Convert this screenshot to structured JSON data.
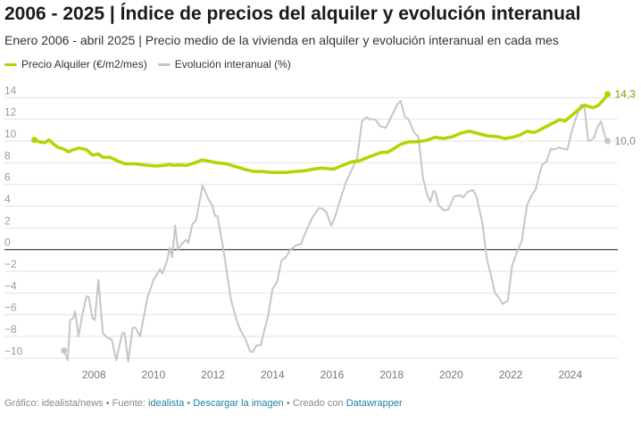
{
  "header": {
    "title": "2006 - 2025 | Índice de precios del alquiler y evolución interanual",
    "subtitle": "Enero 2006 - abril 2025 | Precio medio de la vivienda en alquiler y evolución interanual en cada mes"
  },
  "footer": {
    "prefix": "Gráfico: idealista/news • Fuente: ",
    "source_link": "idealista",
    "sep1": " • ",
    "download_link": "Descargar la imagen",
    "sep2": " • Creado con ",
    "tool_link": "Datawrapper"
  },
  "colors": {
    "rent": "#b5d300",
    "yoy": "#c6c6c6",
    "rent_label": "#8a9800",
    "yoy_label": "#888888",
    "zero": "#555555",
    "grid": "#e2e2e2",
    "tick": "#9a9a9a"
  },
  "chart_data": {
    "type": "line",
    "title": "2006 - 2025 | Índice de precios del alquiler y evolución interanual",
    "xlabel": "",
    "ylabel": "",
    "xlim": [
      2006,
      2025.25
    ],
    "ylim": [
      -10.5,
      14.5
    ],
    "y_ticks": [
      14,
      12,
      10,
      8,
      6,
      4,
      2,
      0,
      -2,
      -4,
      -6,
      -8,
      -10
    ],
    "y_tick_labels": [
      "14",
      "12",
      "10",
      "8",
      "6",
      "4",
      "2",
      "0",
      "−2",
      "−4",
      "−6",
      "−8",
      "−10"
    ],
    "x_ticks": [
      2008,
      2010,
      2012,
      2014,
      2016,
      2018,
      2020,
      2022,
      2024
    ],
    "x_tick_labels": [
      "2008",
      "2010",
      "2012",
      "2014",
      "2016",
      "2018",
      "2020",
      "2022",
      "2024"
    ],
    "grid": true,
    "legend_position": "top-left",
    "series": [
      {
        "name": "Precio Alquiler (€/m2/mes)",
        "end_label": "14,3",
        "points": [
          [
            2006.0,
            10.1
          ],
          [
            2006.2,
            9.9
          ],
          [
            2006.35,
            9.85
          ],
          [
            2006.5,
            10.1
          ],
          [
            2006.65,
            9.7
          ],
          [
            2006.8,
            9.4
          ],
          [
            2006.95,
            9.3
          ],
          [
            2007.15,
            9.0
          ],
          [
            2007.3,
            9.2
          ],
          [
            2007.5,
            9.35
          ],
          [
            2007.75,
            9.2
          ],
          [
            2007.95,
            8.7
          ],
          [
            2008.15,
            8.8
          ],
          [
            2008.3,
            8.5
          ],
          [
            2008.55,
            8.5
          ],
          [
            2008.8,
            8.15
          ],
          [
            2009.05,
            7.9
          ],
          [
            2009.4,
            7.9
          ],
          [
            2009.65,
            7.8
          ],
          [
            2010.05,
            7.7
          ],
          [
            2010.35,
            7.75
          ],
          [
            2010.55,
            7.85
          ],
          [
            2010.65,
            7.75
          ],
          [
            2010.85,
            7.8
          ],
          [
            2011.1,
            7.75
          ],
          [
            2011.4,
            8.0
          ],
          [
            2011.63,
            8.25
          ],
          [
            2011.85,
            8.15
          ],
          [
            2012.1,
            8.0
          ],
          [
            2012.45,
            7.9
          ],
          [
            2012.75,
            7.65
          ],
          [
            2013.05,
            7.4
          ],
          [
            2013.35,
            7.2
          ],
          [
            2013.65,
            7.2
          ],
          [
            2013.95,
            7.1
          ],
          [
            2014.45,
            7.1
          ],
          [
            2014.75,
            7.2
          ],
          [
            2015.05,
            7.25
          ],
          [
            2015.35,
            7.4
          ],
          [
            2015.65,
            7.5
          ],
          [
            2016.05,
            7.4
          ],
          [
            2016.25,
            7.65
          ],
          [
            2016.65,
            8.07
          ],
          [
            2016.95,
            8.2
          ],
          [
            2017.3,
            8.6
          ],
          [
            2017.65,
            8.95
          ],
          [
            2017.85,
            8.95
          ],
          [
            2018.05,
            9.25
          ],
          [
            2018.3,
            9.7
          ],
          [
            2018.6,
            9.93
          ],
          [
            2018.85,
            9.93
          ],
          [
            2019.15,
            10.04
          ],
          [
            2019.45,
            10.34
          ],
          [
            2019.75,
            10.23
          ],
          [
            2020.05,
            10.4
          ],
          [
            2020.35,
            10.75
          ],
          [
            2020.6,
            10.9
          ],
          [
            2020.9,
            10.7
          ],
          [
            2021.2,
            10.48
          ],
          [
            2021.55,
            10.4
          ],
          [
            2021.8,
            10.23
          ],
          [
            2022.05,
            10.34
          ],
          [
            2022.3,
            10.53
          ],
          [
            2022.55,
            10.9
          ],
          [
            2022.8,
            10.78
          ],
          [
            2023.1,
            11.2
          ],
          [
            2023.35,
            11.55
          ],
          [
            2023.65,
            11.96
          ],
          [
            2023.83,
            11.85
          ],
          [
            2024.15,
            12.6
          ],
          [
            2024.47,
            13.3
          ],
          [
            2024.77,
            13.06
          ],
          [
            2024.95,
            13.3
          ],
          [
            2025.15,
            13.9
          ],
          [
            2025.25,
            14.3
          ]
        ]
      },
      {
        "name": "Evolución interanual (%)",
        "end_label": "10,0",
        "points": [
          [
            2007.0,
            -9.3
          ],
          [
            2007.12,
            -10.2
          ],
          [
            2007.2,
            -6.5
          ],
          [
            2007.3,
            -6.3
          ],
          [
            2007.37,
            -5.7
          ],
          [
            2007.48,
            -8.0
          ],
          [
            2007.6,
            -6.1
          ],
          [
            2007.75,
            -4.3
          ],
          [
            2007.83,
            -4.4
          ],
          [
            2007.95,
            -6.3
          ],
          [
            2008.03,
            -6.5
          ],
          [
            2008.15,
            -2.8
          ],
          [
            2008.3,
            -7.7
          ],
          [
            2008.45,
            -8.1
          ],
          [
            2008.6,
            -8.3
          ],
          [
            2008.75,
            -10.2
          ],
          [
            2008.95,
            -7.7
          ],
          [
            2009.03,
            -7.7
          ],
          [
            2009.15,
            -10.3
          ],
          [
            2009.3,
            -7.2
          ],
          [
            2009.4,
            -7.2
          ],
          [
            2009.55,
            -8.0
          ],
          [
            2009.8,
            -4.4
          ],
          [
            2010.0,
            -2.8
          ],
          [
            2010.22,
            -1.8
          ],
          [
            2010.3,
            -2.2
          ],
          [
            2010.45,
            -1.1
          ],
          [
            2010.55,
            0.2
          ],
          [
            2010.63,
            -0.7
          ],
          [
            2010.73,
            2.2
          ],
          [
            2010.82,
            0.0
          ],
          [
            2010.95,
            0.5
          ],
          [
            2011.1,
            0.9
          ],
          [
            2011.17,
            0.6
          ],
          [
            2011.3,
            2.3
          ],
          [
            2011.43,
            2.7
          ],
          [
            2011.65,
            5.9
          ],
          [
            2011.85,
            4.6
          ],
          [
            2011.97,
            4.1
          ],
          [
            2012.07,
            3.1
          ],
          [
            2012.15,
            3.1
          ],
          [
            2012.35,
            0.0
          ],
          [
            2012.6,
            -4.6
          ],
          [
            2012.75,
            -6.1
          ],
          [
            2012.9,
            -7.3
          ],
          [
            2013.1,
            -8.3
          ],
          [
            2013.25,
            -9.4
          ],
          [
            2013.33,
            -9.4
          ],
          [
            2013.47,
            -8.8
          ],
          [
            2013.6,
            -8.8
          ],
          [
            2013.85,
            -6.1
          ],
          [
            2014.0,
            -3.6
          ],
          [
            2014.15,
            -3.0
          ],
          [
            2014.3,
            -1.0
          ],
          [
            2014.45,
            -0.7
          ],
          [
            2014.6,
            0.0
          ],
          [
            2014.8,
            0.4
          ],
          [
            2014.95,
            0.5
          ],
          [
            2015.15,
            1.9
          ],
          [
            2015.35,
            3.0
          ],
          [
            2015.55,
            3.8
          ],
          [
            2015.65,
            3.8
          ],
          [
            2015.8,
            3.5
          ],
          [
            2015.97,
            2.2
          ],
          [
            2016.1,
            3.0
          ],
          [
            2016.25,
            4.4
          ],
          [
            2016.45,
            6.1
          ],
          [
            2016.6,
            7.0
          ],
          [
            2016.85,
            8.5
          ],
          [
            2017.0,
            11.8
          ],
          [
            2017.15,
            12.2
          ],
          [
            2017.25,
            12.0
          ],
          [
            2017.45,
            12.0
          ],
          [
            2017.6,
            11.4
          ],
          [
            2017.8,
            11.2
          ],
          [
            2018.0,
            12.3
          ],
          [
            2018.2,
            13.4
          ],
          [
            2018.3,
            13.7
          ],
          [
            2018.45,
            12.2
          ],
          [
            2018.57,
            12.0
          ],
          [
            2018.75,
            10.8
          ],
          [
            2018.9,
            10.4
          ],
          [
            2019.05,
            6.6
          ],
          [
            2019.2,
            5.0
          ],
          [
            2019.3,
            4.4
          ],
          [
            2019.4,
            5.4
          ],
          [
            2019.47,
            5.3
          ],
          [
            2019.57,
            4.1
          ],
          [
            2019.75,
            3.6
          ],
          [
            2019.9,
            3.7
          ],
          [
            2020.1,
            4.9
          ],
          [
            2020.3,
            5.0
          ],
          [
            2020.4,
            4.8
          ],
          [
            2020.55,
            5.3
          ],
          [
            2020.73,
            5.5
          ],
          [
            2020.85,
            4.9
          ],
          [
            2021.05,
            2.4
          ],
          [
            2021.2,
            -0.9
          ],
          [
            2021.35,
            -2.5
          ],
          [
            2021.47,
            -4.0
          ],
          [
            2021.6,
            -4.4
          ],
          [
            2021.73,
            -5.0
          ],
          [
            2021.9,
            -4.7
          ],
          [
            2022.05,
            -1.4
          ],
          [
            2022.2,
            -0.3
          ],
          [
            2022.37,
            0.8
          ],
          [
            2022.55,
            4.1
          ],
          [
            2022.7,
            5.0
          ],
          [
            2022.83,
            5.5
          ],
          [
            2023.05,
            7.8
          ],
          [
            2023.2,
            8.1
          ],
          [
            2023.35,
            9.3
          ],
          [
            2023.45,
            9.2
          ],
          [
            2023.6,
            9.4
          ],
          [
            2023.75,
            9.3
          ],
          [
            2023.9,
            9.2
          ],
          [
            2024.05,
            10.9
          ],
          [
            2024.2,
            12.2
          ],
          [
            2024.35,
            13.3
          ],
          [
            2024.47,
            13.3
          ],
          [
            2024.6,
            10.0
          ],
          [
            2024.7,
            10.1
          ],
          [
            2024.8,
            10.3
          ],
          [
            2024.9,
            11.2
          ],
          [
            2025.03,
            11.8
          ],
          [
            2025.17,
            10.4
          ],
          [
            2025.25,
            10.0
          ]
        ]
      }
    ]
  }
}
